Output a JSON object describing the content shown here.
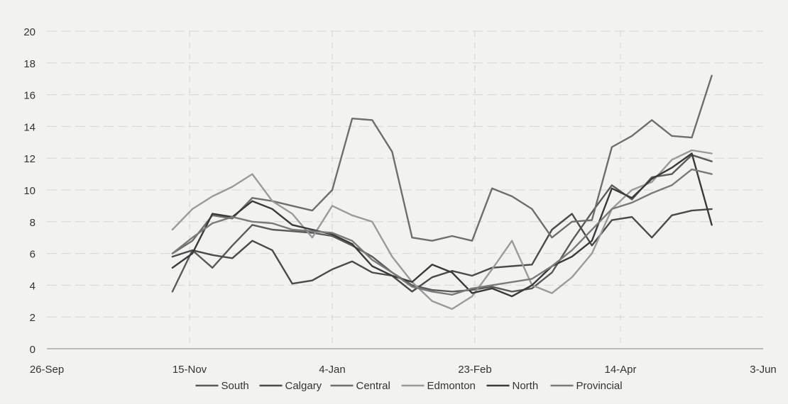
{
  "chart_data": {
    "type": "line",
    "title": "",
    "xlabel": "",
    "ylabel": "",
    "x_ticks": [
      "26-Sep",
      "15-Nov",
      "4-Jan",
      "23-Feb",
      "14-Apr",
      "3-Jun"
    ],
    "ylim": [
      0,
      20
    ],
    "y_ticks": [
      "0",
      "2",
      "4",
      "6",
      "8",
      "10",
      "12",
      "14",
      "16",
      "18",
      "20"
    ],
    "grid": true,
    "legend_position": "bottom",
    "x": [
      "2019-11-09",
      "2019-11-16",
      "2019-11-23",
      "2019-11-30",
      "2019-12-07",
      "2019-12-14",
      "2019-12-21",
      "2019-12-28",
      "2020-01-04",
      "2020-01-11",
      "2020-01-18",
      "2020-01-25",
      "2020-02-01",
      "2020-02-08",
      "2020-02-15",
      "2020-02-22",
      "2020-02-29",
      "2020-03-07",
      "2020-03-14",
      "2020-03-21",
      "2020-03-28",
      "2020-04-04",
      "2020-04-11",
      "2020-04-18",
      "2020-04-25",
      "2020-05-02",
      "2020-05-09",
      "2020-05-16"
    ],
    "series": [
      {
        "name": "South",
        "color": "#5a5a5a",
        "values": [
          3.6,
          6.2,
          5.1,
          6.5,
          7.8,
          7.5,
          7.4,
          7.3,
          7.1,
          6.5,
          5.8,
          4.8,
          4.0,
          3.7,
          3.6,
          3.7,
          3.9,
          3.6,
          3.8,
          4.8,
          6.8,
          8.6,
          10.3,
          9.4,
          10.8,
          11.0,
          12.2,
          11.8
        ]
      },
      {
        "name": "Calgary",
        "color": "#4a4a4a",
        "values": [
          5.8,
          6.2,
          5.9,
          5.7,
          6.8,
          6.2,
          4.1,
          4.3,
          5.0,
          5.5,
          4.8,
          4.6,
          3.6,
          4.5,
          4.9,
          4.6,
          5.1,
          5.2,
          5.3,
          7.5,
          8.5,
          6.5,
          8.1,
          8.3,
          7.0,
          8.4,
          8.7,
          8.8
        ]
      },
      {
        "name": "Central",
        "color": "#6e6e6e",
        "values": [
          6.0,
          6.8,
          8.4,
          8.2,
          9.5,
          9.3,
          9.0,
          8.7,
          10.0,
          14.5,
          14.4,
          12.4,
          7.0,
          6.8,
          7.1,
          6.8,
          10.1,
          9.6,
          8.8,
          7.0,
          8.0,
          8.1,
          12.7,
          13.4,
          14.4,
          13.4,
          13.3,
          17.2
        ]
      },
      {
        "name": "Edmonton",
        "color": "#9a9a9a",
        "values": [
          7.5,
          8.8,
          9.6,
          10.2,
          11.0,
          9.3,
          8.5,
          7.0,
          9.0,
          8.4,
          8.0,
          5.8,
          4.2,
          3.0,
          2.5,
          3.3,
          5.0,
          6.8,
          4.0,
          3.5,
          4.5,
          6.0,
          8.8,
          10.0,
          10.5,
          11.9,
          12.5,
          12.3
        ]
      },
      {
        "name": "North",
        "color": "#3a3a3a",
        "values": [
          5.1,
          6.0,
          8.5,
          8.3,
          9.3,
          8.8,
          7.8,
          7.5,
          7.2,
          6.6,
          5.2,
          4.6,
          4.2,
          5.3,
          4.8,
          3.5,
          3.8,
          3.3,
          4.0,
          5.2,
          5.8,
          6.8,
          10.1,
          9.5,
          10.7,
          11.4,
          12.3,
          7.8
        ]
      },
      {
        "name": "Provincial",
        "color": "#7a7a7a",
        "values": [
          6.0,
          7.0,
          7.9,
          8.3,
          8.0,
          7.9,
          7.5,
          7.4,
          7.3,
          6.8,
          5.6,
          4.8,
          3.9,
          3.6,
          3.4,
          3.8,
          4.0,
          4.2,
          4.4,
          5.2,
          6.2,
          7.5,
          8.8,
          9.2,
          9.8,
          10.3,
          11.3,
          11.0
        ]
      }
    ]
  }
}
